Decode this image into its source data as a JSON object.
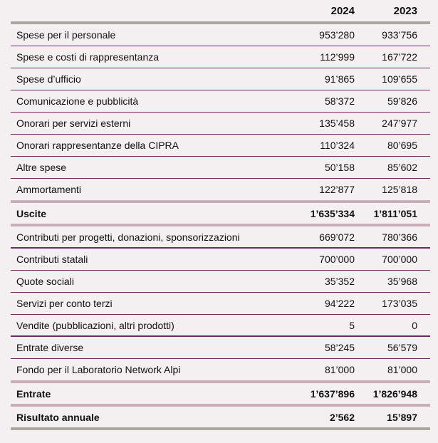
{
  "header": {
    "col1": "2024",
    "col2": "2023"
  },
  "expenses": [
    {
      "label": "Spese per il personale",
      "y2024": "953’280",
      "y2023": "933’756"
    },
    {
      "label": "Spese e costi di rappresentanza",
      "y2024": "112’999",
      "y2023": "167’722"
    },
    {
      "label": "Spese d’ufficio",
      "y2024": "91’865",
      "y2023": "109’655"
    },
    {
      "label": "Comunicazione e pubblicità",
      "y2024": "58’372",
      "y2023": "59’826"
    },
    {
      "label": "Onorari per servizi esterni",
      "y2024": "135’458",
      "y2023": "247’977"
    },
    {
      "label": "Onorari rappresentanze della CIPRA",
      "y2024": "110’324",
      "y2023": "80’695"
    },
    {
      "label": "Altre spese",
      "y2024": "50’158",
      "y2023": "85’602"
    },
    {
      "label": "Ammortamenti",
      "y2024": "122’877",
      "y2023": "125’818"
    }
  ],
  "expenses_total": {
    "label": "Uscite",
    "y2024": "1’635’334",
    "y2023": "1’811’051"
  },
  "income": [
    {
      "label": "Contributi per progetti, donazioni, sponsorizzazioni",
      "y2024": "669’072",
      "y2023": "780’366"
    },
    {
      "label": "Contributi statali",
      "y2024": "700’000",
      "y2023": "700’000"
    },
    {
      "label": "Quote sociali",
      "y2024": "35’352",
      "y2023": "35’968"
    },
    {
      "label": "Servizi per conto terzi",
      "y2024": "94’222",
      "y2023": "173’035"
    },
    {
      "label": "Vendite (pubblicazioni, altri prodotti)",
      "y2024": "5",
      "y2023": "0"
    },
    {
      "label": "Entrate diverse",
      "y2024": "58’245",
      "y2023": "56’579"
    },
    {
      "label": "Fondo per il Laboratorio Network Alpi",
      "y2024": "81’000",
      "y2023": "81’000"
    }
  ],
  "income_total": {
    "label": "Entrate",
    "y2024": "1’637’896",
    "y2023": "1’826’948"
  },
  "result": {
    "label": "Risultato annuale",
    "y2024": "2’562",
    "y2023": "15’897"
  },
  "colors": {
    "row_rule": "#6b2a5e",
    "total_rule": "#c9aeb9",
    "header_rule": "#aaa79e",
    "background": "#f4eff0"
  }
}
